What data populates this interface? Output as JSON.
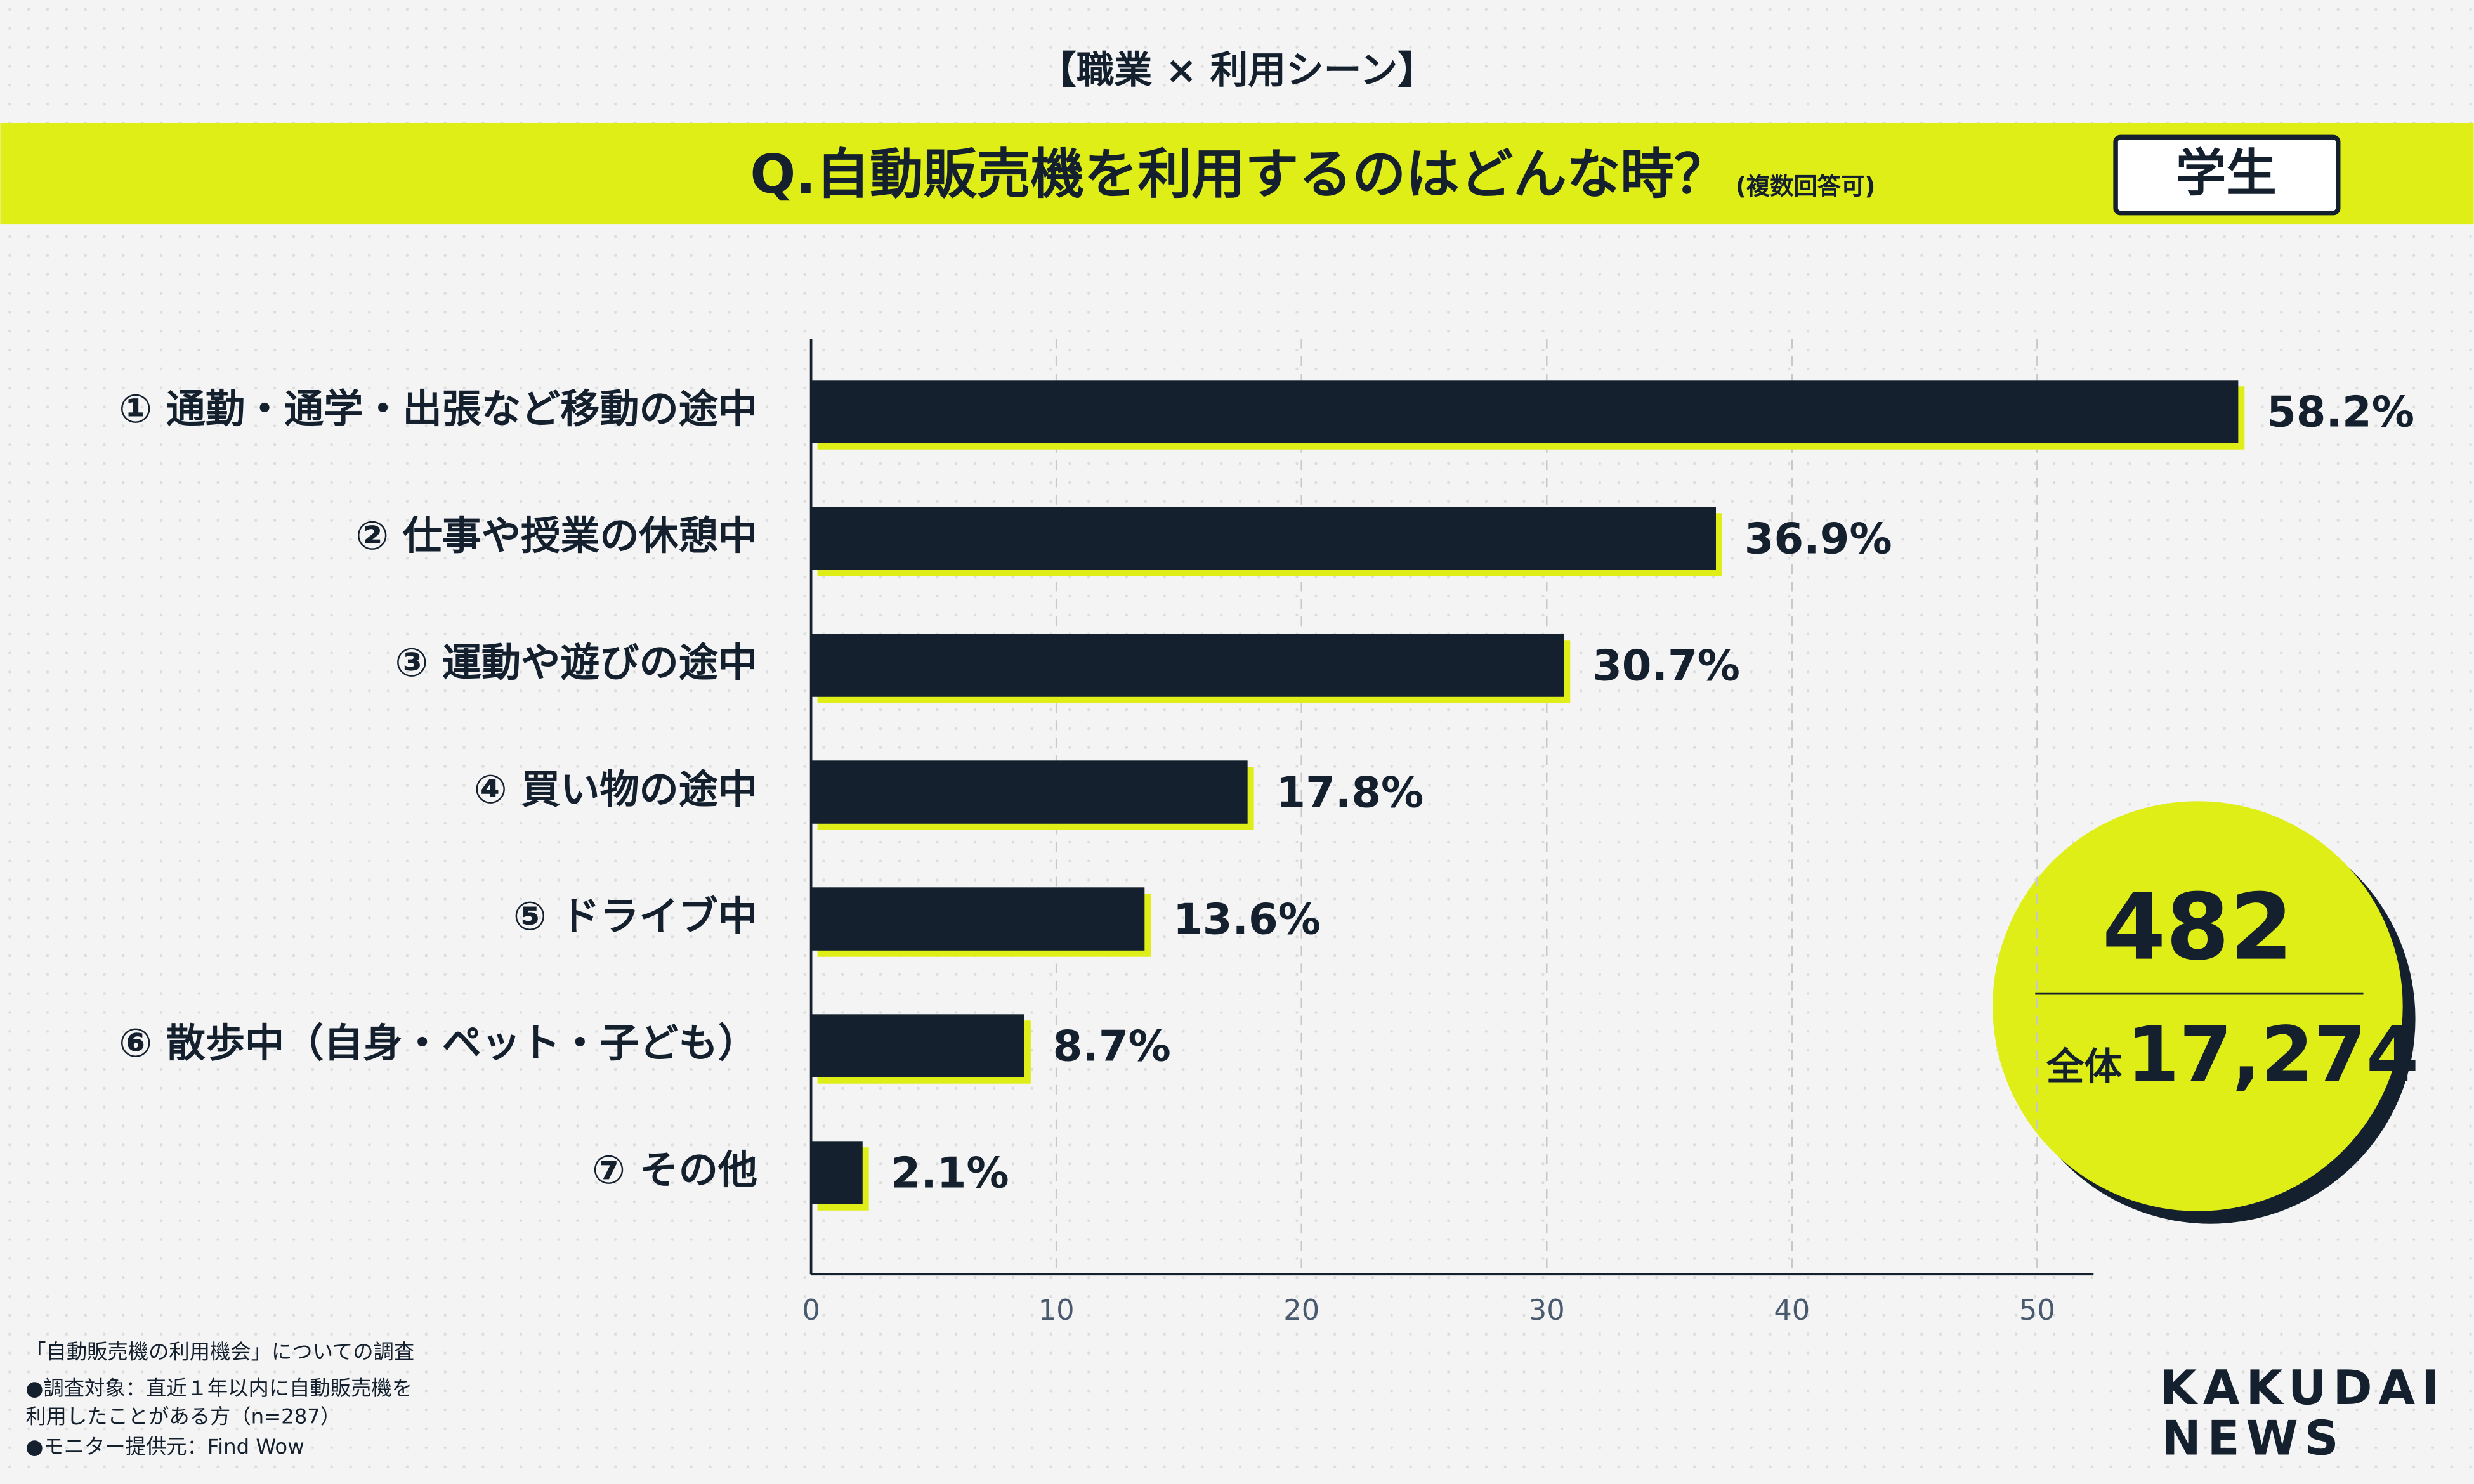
{
  "header": "【職業 × 利用シーン】",
  "chart_data": {
    "type": "barh",
    "title": "Q.自動販売機を利用するのはどんな時？",
    "subtitle": "(複数回答可)",
    "badge": "学生",
    "categories": [
      "① 通勤・通学・出張など移動の途中",
      "② 仕事や授業の休憩中",
      "③ 運動や遊びの途中",
      "④ 買い物の途中",
      "⑤ ドライブ中",
      "⑥ 散歩中（自身・ペット・子ども）",
      "⑦ その他"
    ],
    "values": [
      58.2,
      36.9,
      30.7,
      17.8,
      13.6,
      8.7,
      2.1
    ],
    "value_labels": [
      "58.2%",
      "36.9%",
      "30.7%",
      "17.8%",
      "13.6%",
      "8.7%",
      "2.1%"
    ],
    "color": "#14202e",
    "shadow_color": "#dfee17",
    "xlim": [
      0,
      52.3
    ],
    "xticks": [
      0,
      10,
      20,
      30,
      40,
      50
    ],
    "grid": true
  },
  "circle": {
    "count": "482",
    "total_label": "全体",
    "total": "17,274"
  },
  "notes": [
    "「自動販売機の利用機会」についての調査",
    "●調査対象：直近１年以内に自動販売機を",
    "利用したことがある方（n=287）",
    "●モニター提供元：Find Wow"
  ],
  "logo": [
    "KAKUDAI",
    "NEWS"
  ]
}
